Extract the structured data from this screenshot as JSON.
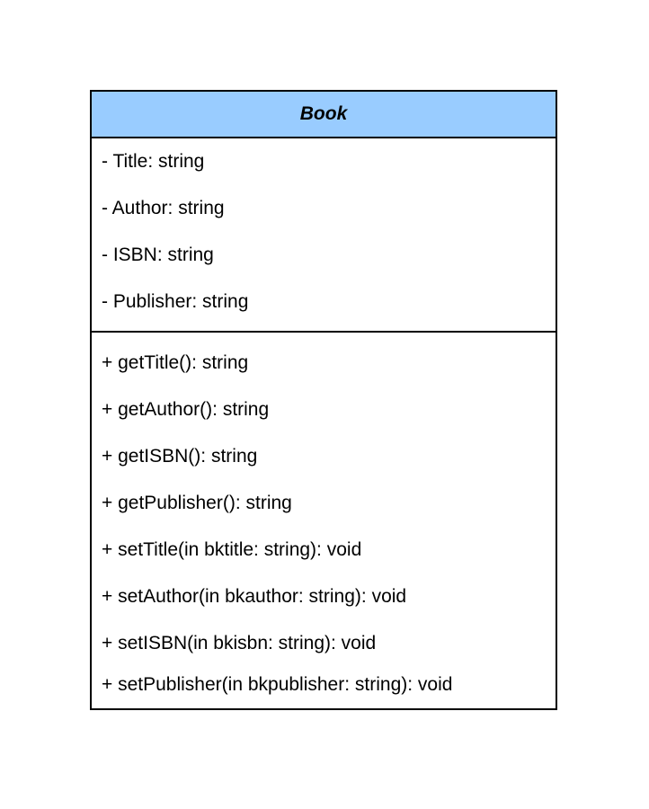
{
  "class": {
    "name": "Book",
    "header_color": "#99ccff",
    "attributes": [
      "- Title: string",
      "- Author: string",
      "- ISBN: string",
      "- Publisher: string"
    ],
    "operations": [
      "+ getTitle(): string",
      "+ getAuthor(): string",
      "+ getISBN(): string",
      "+ getPublisher(): string",
      "+ setTitle(in bktitle: string): void",
      "+ setAuthor(in bkauthor: string): void",
      "+ setISBN(in bkisbn: string): void",
      "+ setPublisher(in bkpublisher: string): void"
    ]
  }
}
